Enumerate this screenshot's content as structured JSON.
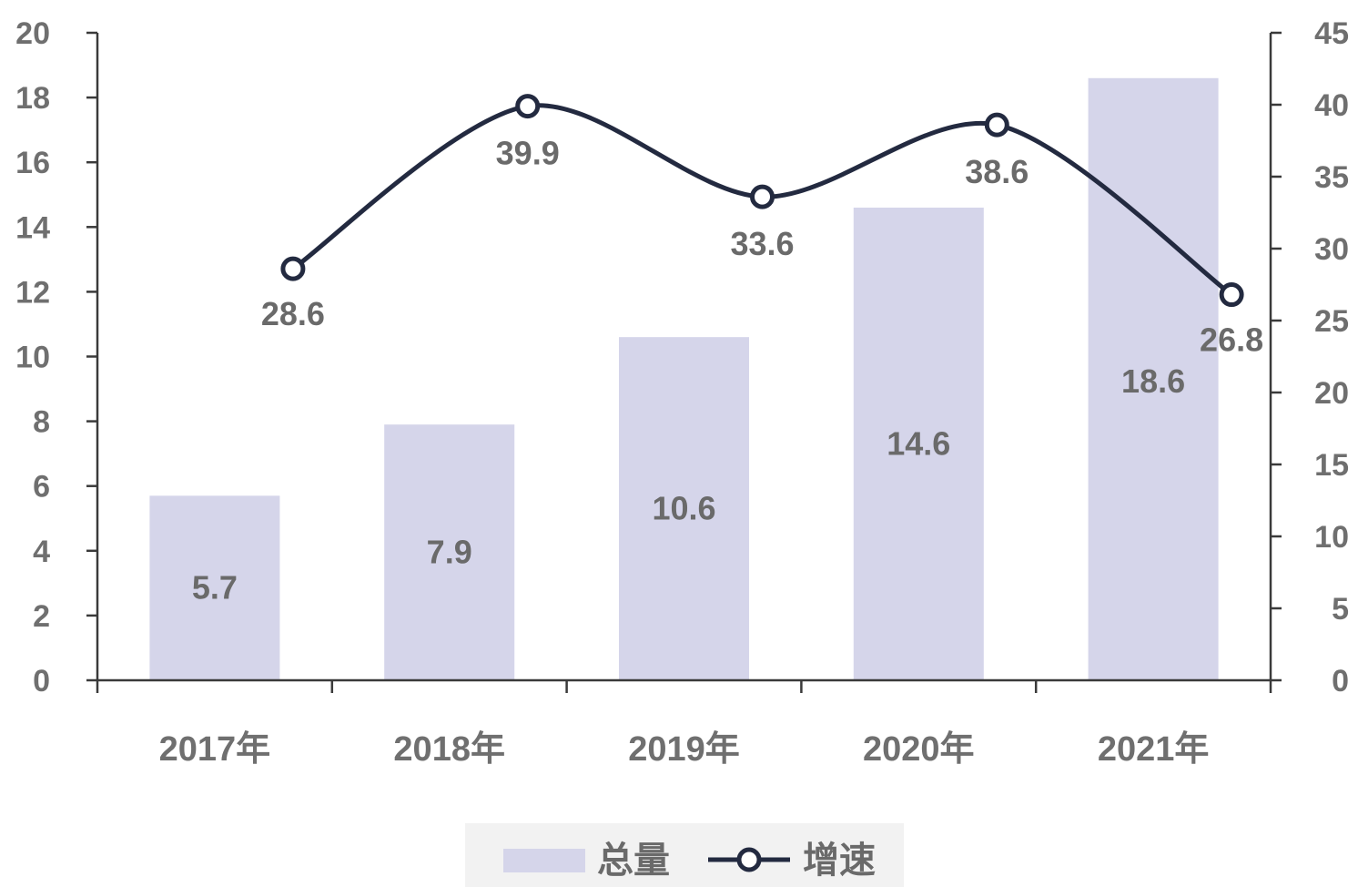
{
  "chart_data": {
    "type": "bar",
    "categories": [
      "2017年",
      "2018年",
      "2019年",
      "2020年",
      "2021年"
    ],
    "series": [
      {
        "name": "总量",
        "type": "bar",
        "axis": "left",
        "values": [
          5.7,
          7.9,
          10.6,
          14.6,
          18.6
        ]
      },
      {
        "name": "增速",
        "type": "line",
        "axis": "right",
        "values": [
          28.6,
          39.9,
          33.6,
          38.6,
          26.8
        ]
      }
    ],
    "y_left": {
      "min": 0,
      "max": 20,
      "step": 2
    },
    "y_right": {
      "min": 0,
      "max": 45,
      "step": 5
    },
    "grid": false,
    "legend": "bottom-center",
    "colors": {
      "bar": "#d5d5ea",
      "line": "#232a40",
      "text": "#6f6f6f",
      "axis": "#3a3a3a",
      "legend_bg": "#f2f2f2"
    }
  }
}
